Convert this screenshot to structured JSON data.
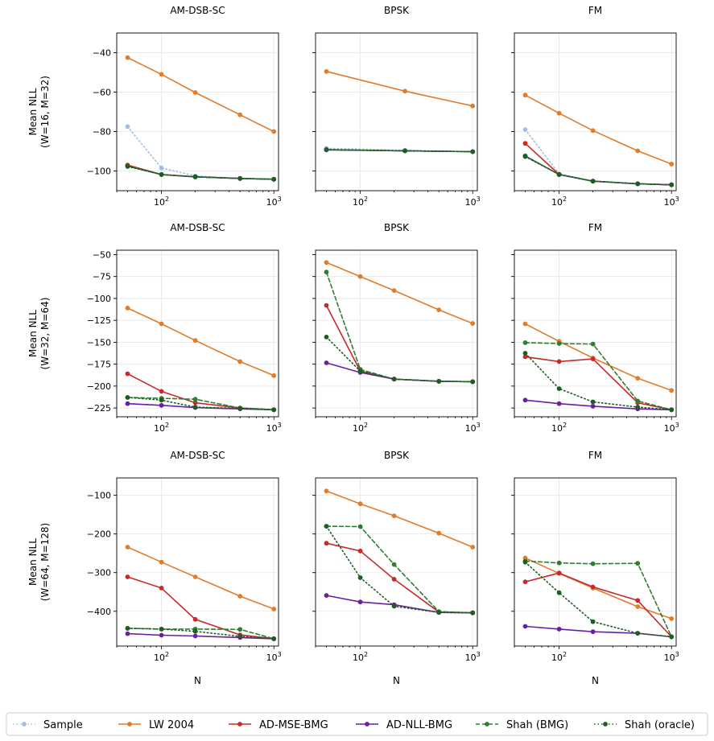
{
  "chart_data": {
    "type": "line",
    "x": [
      50,
      100,
      200,
      500,
      1000
    ],
    "xlabel": "N",
    "xscale": "log",
    "grid": true,
    "legend_position": "bottom",
    "series_styles": [
      {
        "name": "Sample",
        "color": "#a2bfe3",
        "dash": "dotted",
        "key": "sample"
      },
      {
        "name": "LW 2004",
        "color": "#e07c2c",
        "dash": "solid",
        "key": "lw"
      },
      {
        "name": "AD-MSE-BMG",
        "color": "#c62a2a",
        "dash": "solid",
        "key": "mse"
      },
      {
        "name": "AD-NLL-BMG",
        "color": "#6a1fa0",
        "dash": "solid",
        "key": "nll"
      },
      {
        "name": "Shah (BMG)",
        "color": "#2e7d32",
        "dash": "dashed",
        "key": "shahbmg"
      },
      {
        "name": "Shah (oracle)",
        "color": "#1b5e20",
        "dash": "dotted",
        "key": "shahorc"
      }
    ],
    "rows": [
      {
        "ylabel": [
          "Mean NLL",
          "(W=16, M=32)"
        ],
        "ylim": [
          -110,
          -30
        ],
        "yticks": [
          -100,
          -80,
          -60,
          -40
        ],
        "ytick_labels": [
          "−100",
          "−80",
          "−60",
          "−40"
        ],
        "panels": [
          {
            "title": "AM-DSB-SC",
            "x": [
              50,
              100,
              200,
              500,
              1000
            ],
            "series": {
              "sample": [
                -77.5,
                -98.5,
                -102.5,
                -103.8,
                -104.2
              ],
              "lw": [
                -42.5,
                -51,
                -60.2,
                -71.5,
                -80
              ],
              "mse": [
                -97,
                -101.8,
                -103,
                -103.8,
                -104.2
              ],
              "nll": [
                -97.5,
                -101.8,
                -103,
                -103.8,
                -104.2
              ],
              "shahbmg": [
                -97.5,
                -101.8,
                -103,
                -103.8,
                -104.2
              ],
              "shahorc": [
                -97.7,
                -101.8,
                -103,
                -103.8,
                -104.2
              ]
            }
          },
          {
            "title": "BPSK",
            "x": [
              50,
              250,
              1000
            ],
            "series": {
              "sample": [
                -88.5,
                -89.5,
                -90.2
              ],
              "lw": [
                -49.5,
                -59.5,
                -67
              ],
              "mse": [
                -89.2,
                -89.8,
                -90.2
              ],
              "nll": [
                -89.3,
                -89.8,
                -90.2
              ],
              "shahbmg": [
                -89.2,
                -89.8,
                -90.2
              ],
              "shahorc": [
                -89.2,
                -89.8,
                -90.2
              ]
            }
          },
          {
            "title": "FM",
            "x": [
              50,
              100,
              200,
              500,
              1000
            ],
            "series": {
              "sample": [
                -79,
                -101.5,
                -105.2,
                -106.5,
                -107
              ],
              "lw": [
                -61.5,
                -70.7,
                -79.5,
                -89.8,
                -96.5
              ],
              "mse": [
                -86,
                -101.8,
                -105.2,
                -106.5,
                -107
              ],
              "nll": [
                -92.5,
                -101.8,
                -105.2,
                -106.5,
                -107
              ],
              "shahbmg": [
                -92.3,
                -101.8,
                -105.2,
                -106.5,
                -107
              ],
              "shahorc": [
                -92.7,
                -101.8,
                -105.2,
                -106.5,
                -107
              ]
            }
          }
        ]
      },
      {
        "ylabel": [
          "Mean NLL",
          "(W=32, M=64)"
        ],
        "ylim": [
          -235,
          -45
        ],
        "yticks": [
          -225,
          -200,
          -175,
          -150,
          -125,
          -100,
          -75,
          -50
        ],
        "ytick_labels": [
          "−225",
          "−200",
          "−175",
          "−150",
          "−125",
          "−100",
          "−75",
          "−50"
        ],
        "panels": [
          {
            "title": "AM-DSB-SC",
            "x": [
              50,
              100,
              200,
              500,
              1000
            ],
            "series": {
              "lw": [
                -111,
                -129,
                -148,
                -172,
                -188
              ],
              "mse": [
                -186,
                -206,
                -219,
                -225,
                -227
              ],
              "nll": [
                -220,
                -222,
                -224.5,
                -226,
                -227
              ],
              "shahbmg": [
                -213,
                -214,
                -215,
                -225,
                -227
              ],
              "shahorc": [
                -213,
                -216,
                -224,
                -225.5,
                -227
              ]
            }
          },
          {
            "title": "BPSK",
            "x": [
              50,
              100,
              200,
              500,
              1000
            ],
            "series": {
              "lw": [
                -59,
                -75,
                -91,
                -113,
                -128.5
              ],
              "mse": [
                -108,
                -183,
                -192,
                -194.5,
                -195
              ],
              "nll": [
                -173.5,
                -184.5,
                -192,
                -194.5,
                -195
              ],
              "shahbmg": [
                -70,
                -181,
                -192,
                -194.5,
                -195
              ],
              "shahorc": [
                -144,
                -183,
                -192,
                -194.5,
                -195
              ]
            }
          },
          {
            "title": "FM",
            "x": [
              50,
              100,
              200,
              500,
              1000
            ],
            "series": {
              "lw": [
                -129,
                -149,
                -168,
                -191,
                -205
              ],
              "mse": [
                -166.5,
                -172,
                -169,
                -219,
                -227
              ],
              "nll": [
                -216,
                -220,
                -223,
                -226,
                -227
              ],
              "shahbmg": [
                -150.5,
                -151.5,
                -152,
                -217,
                -227
              ],
              "shahorc": [
                -162.5,
                -203,
                -218,
                -224,
                -227
              ]
            }
          }
        ]
      },
      {
        "ylabel": [
          "Mean NLL",
          "(W=64, M=128)"
        ],
        "ylim": [
          -490,
          -55
        ],
        "yticks": [
          -400,
          -300,
          -200,
          -100
        ],
        "ytick_labels": [
          "−400",
          "−300",
          "−200",
          "−100"
        ],
        "panels": [
          {
            "title": "AM-DSB-SC",
            "x": [
              50,
              100,
              200,
              500,
              1000
            ],
            "series": {
              "lw": [
                -234,
                -273,
                -311,
                -361,
                -394
              ],
              "mse": [
                -311,
                -340,
                -421,
                -461,
                -471
              ],
              "nll": [
                -458,
                -462,
                -464,
                -468,
                -471
              ],
              "shahbmg": [
                -444,
                -446,
                -446,
                -447,
                -471
              ],
              "shahorc": [
                -444,
                -446,
                -452,
                -465,
                -471
              ]
            }
          },
          {
            "title": "BPSK",
            "x": [
              50,
              100,
              200,
              500,
              1000
            ],
            "series": {
              "lw": [
                -89,
                -122,
                -153,
                -198,
                -234
              ],
              "mse": [
                -224,
                -244,
                -317,
                -402,
                -404
              ],
              "nll": [
                -359,
                -376,
                -383,
                -403,
                -404
              ],
              "shahbmg": [
                -180,
                -181,
                -279,
                -401,
                -404
              ],
              "shahorc": [
                -180,
                -313,
                -387,
                -403,
                -404
              ]
            }
          },
          {
            "title": "FM",
            "x": [
              50,
              100,
              200,
              500,
              1000
            ],
            "series": {
              "lw": [
                -262,
                -302,
                -340,
                -388,
                -419
              ],
              "mse": [
                -324,
                -301,
                -337,
                -372,
                -466
              ],
              "nll": [
                -439,
                -446,
                -453,
                -457,
                -466
              ],
              "shahbmg": [
                -270,
                -275,
                -277,
                -276,
                -466
              ],
              "shahorc": [
                -273,
                -352,
                -427,
                -457,
                -466
              ]
            }
          }
        ]
      }
    ]
  }
}
